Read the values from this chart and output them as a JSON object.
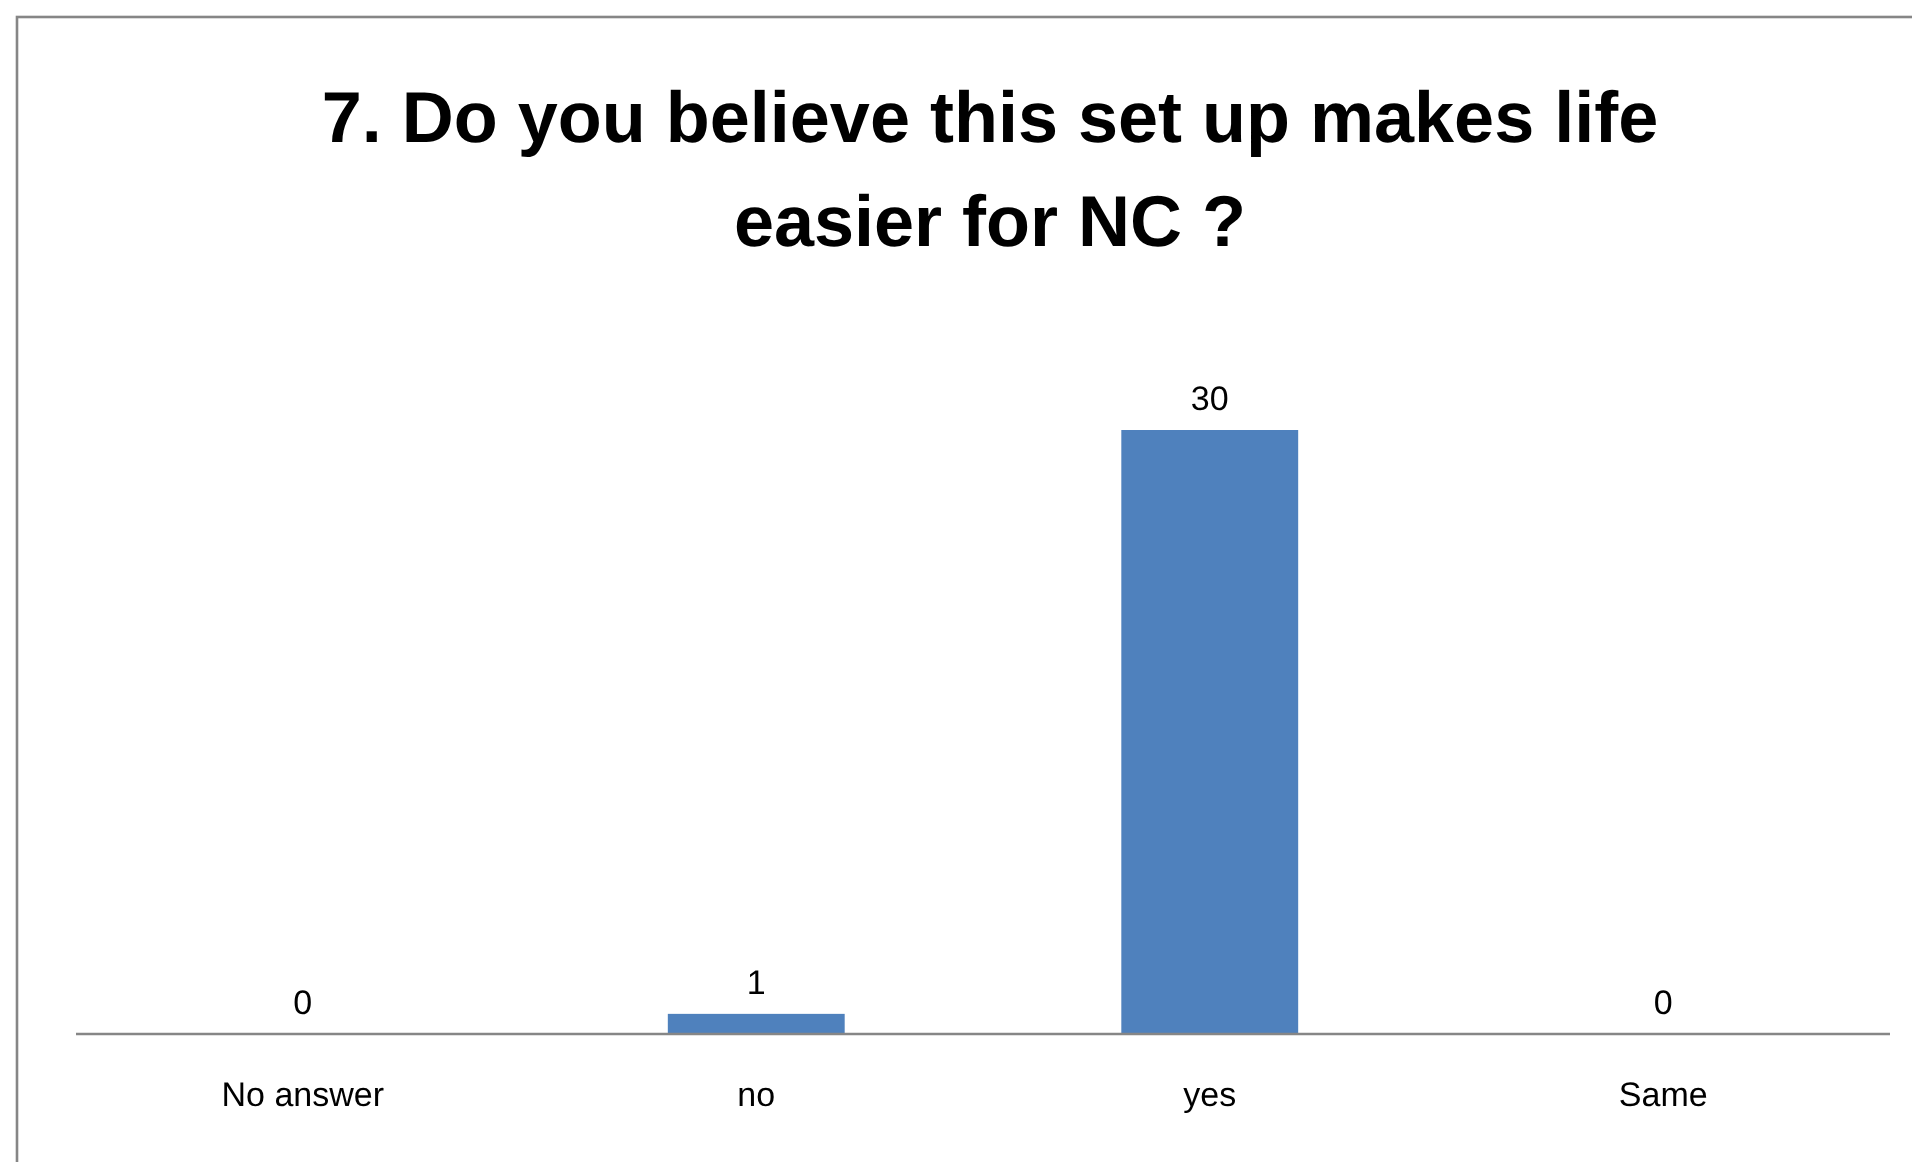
{
  "chart_data": {
    "type": "bar",
    "title": "7. Do you believe this set up makes life easier for NC ?",
    "categories": [
      "No answer",
      "no",
      "yes",
      "Same"
    ],
    "values": [
      0,
      1,
      30,
      0
    ],
    "color": "#4f81bd",
    "data_labels": true
  }
}
